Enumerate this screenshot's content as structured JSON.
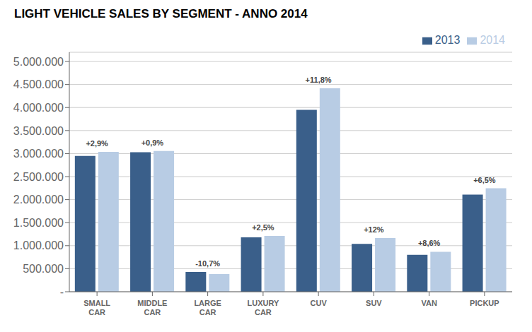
{
  "chart_data": {
    "type": "bar",
    "title": "LIGHT VEHICLE SALES BY SEGMENT - ANNO 2014",
    "categories": [
      "SMALL\nCAR",
      "MIDDLE\nCAR",
      "LARGE\nCAR",
      "LUXURY\nCAR",
      "CUV",
      "SUV",
      "VAN",
      "PICKUP"
    ],
    "series": [
      {
        "name": "2013",
        "color": "#3A5F8A",
        "values": [
          2950000,
          3030000,
          430000,
          1180000,
          3950000,
          1040000,
          800000,
          2110000
        ]
      },
      {
        "name": "2014",
        "color": "#B8CCE4",
        "values": [
          3036000,
          3057000,
          384000,
          1210000,
          4416000,
          1165000,
          868000,
          2247000
        ]
      }
    ],
    "annotations": [
      "+2,9%",
      "+0,9%",
      "-10,7%",
      "+2,5%",
      "+11,8%",
      "+12%",
      "+8,6%",
      "+6,5%"
    ],
    "ylim": [
      0,
      5200000
    ],
    "yticks": [
      {
        "value": 0,
        "label": "-"
      },
      {
        "value": 500000,
        "label": "500.000"
      },
      {
        "value": 1000000,
        "label": "1.000.000"
      },
      {
        "value": 1500000,
        "label": "1.500.000"
      },
      {
        "value": 2000000,
        "label": "2.000.000"
      },
      {
        "value": 2500000,
        "label": "2.500.000"
      },
      {
        "value": 3000000,
        "label": "3.000.000"
      },
      {
        "value": 3500000,
        "label": "3.500.000"
      },
      {
        "value": 4000000,
        "label": "4.000.000"
      },
      {
        "value": 4500000,
        "label": "4.500.000"
      },
      {
        "value": 5000000,
        "label": "5.000.000"
      }
    ],
    "grid": true,
    "legend": "upper right"
  }
}
